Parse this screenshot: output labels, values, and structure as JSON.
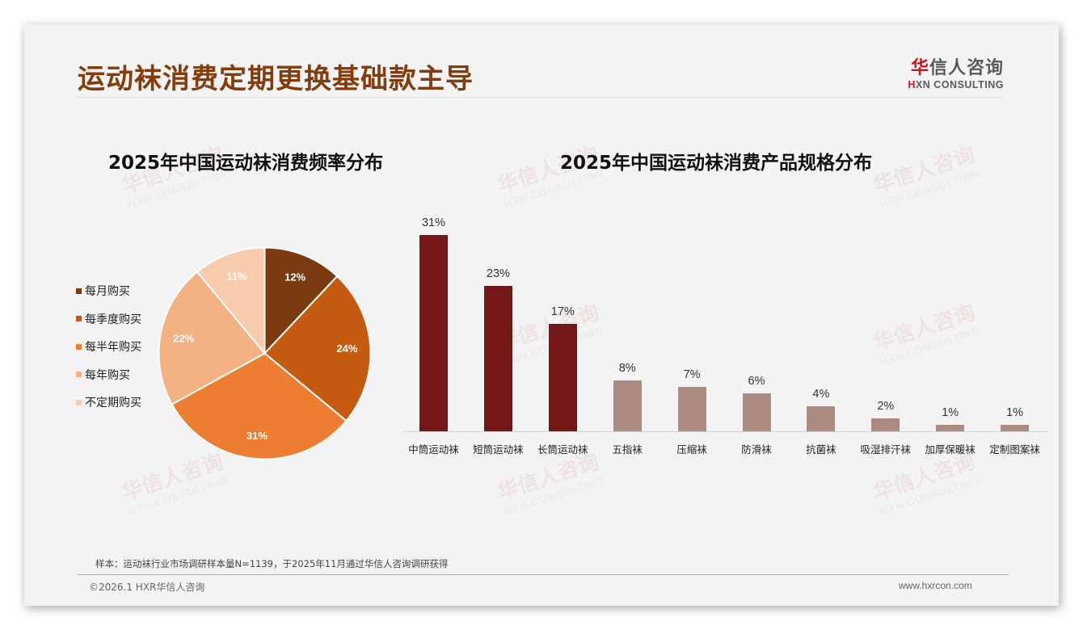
{
  "header": {
    "title": "运动袜消费定期更换基础款主导",
    "logo": {
      "cn_red": "华",
      "cn_rest": "信人咨询",
      "en_red": "H",
      "en_rest": "XN CONSULTING"
    }
  },
  "watermark": {
    "cn": "华信人咨询",
    "en": "HXN CONSULTING"
  },
  "colors": {
    "title": "#843c0c",
    "pie": [
      "#7b3a10",
      "#c55a11",
      "#ed7d31",
      "#f4b183",
      "#f8cbad"
    ],
    "bar_dark": "#761717",
    "bar_light": "#ac8b81",
    "background": "#f3f3f3"
  },
  "chart_data": [
    {
      "type": "pie",
      "title": "2025年中国运动袜消费频率分布",
      "categories": [
        "每月购买",
        "每季度购买",
        "每半年购买",
        "每年购买",
        "不定期购买"
      ],
      "values": [
        12,
        24,
        31,
        22,
        11
      ],
      "labels": [
        "12%",
        "24%",
        "31%",
        "22%",
        "11%"
      ],
      "legend_position": "left",
      "start_angle": "12 o'clock, clockwise"
    },
    {
      "type": "bar",
      "title": "2025年中国运动袜消费产品规格分布",
      "categories": [
        "中筒运动袜",
        "短筒运动袜",
        "长筒运动袜",
        "五指袜",
        "压缩袜",
        "防滑袜",
        "抗菌袜",
        "吸湿排汗袜",
        "加厚保暖袜",
        "定制图案袜"
      ],
      "values": [
        31,
        23,
        17,
        8,
        7,
        6,
        4,
        2,
        1,
        1
      ],
      "labels": [
        "31%",
        "23%",
        "17%",
        "8%",
        "7%",
        "6%",
        "4%",
        "2%",
        "1%",
        "1%"
      ],
      "xlabel": "",
      "ylabel": "",
      "ylim": [
        0,
        35
      ],
      "grid": false
    }
  ],
  "footer": {
    "source": "样本：运动袜行业市场调研样本量N=1139，于2025年11月通过华信人咨询调研获得",
    "copyright": "©2026.1 HXR华信人咨询",
    "website": "www.hxrcon.com"
  }
}
